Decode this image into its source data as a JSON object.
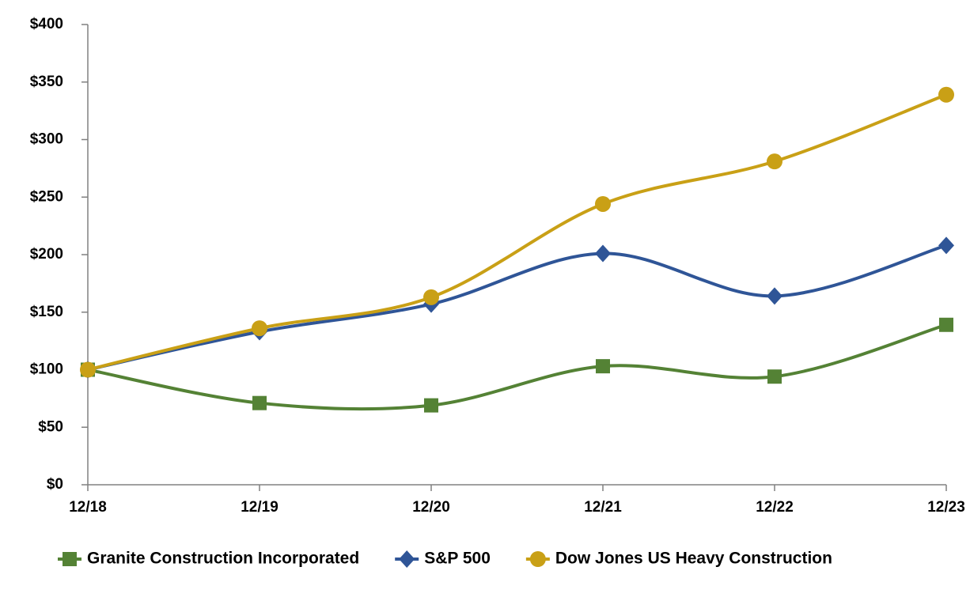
{
  "chart_data": {
    "type": "line",
    "categories": [
      "12/18",
      "12/19",
      "12/20",
      "12/21",
      "12/22",
      "12/23"
    ],
    "series": [
      {
        "name": "Granite Construction Incorporated",
        "color": "#548235",
        "marker": "square",
        "values": [
          100,
          71,
          69,
          103,
          94,
          139
        ]
      },
      {
        "name": "S&P 500",
        "color": "#2f5597",
        "marker": "diamond",
        "values": [
          100,
          133,
          157,
          201,
          164,
          208
        ]
      },
      {
        "name": "Dow Jones US Heavy Construction",
        "color": "#c9a016",
        "marker": "circle",
        "values": [
          100,
          136,
          163,
          244,
          281,
          339
        ]
      }
    ],
    "ylim": [
      0,
      400
    ],
    "yticks": [
      {
        "value": 0,
        "label": "$0"
      },
      {
        "value": 50,
        "label": "$50"
      },
      {
        "value": 100,
        "label": "$100"
      },
      {
        "value": 150,
        "label": "$150"
      },
      {
        "value": 200,
        "label": "$200"
      },
      {
        "value": 250,
        "label": "$250"
      },
      {
        "value": 300,
        "label": "$300"
      },
      {
        "value": 350,
        "label": "$350"
      },
      {
        "value": 400,
        "label": "$400"
      }
    ],
    "smooth": true,
    "legend": "bottom"
  }
}
